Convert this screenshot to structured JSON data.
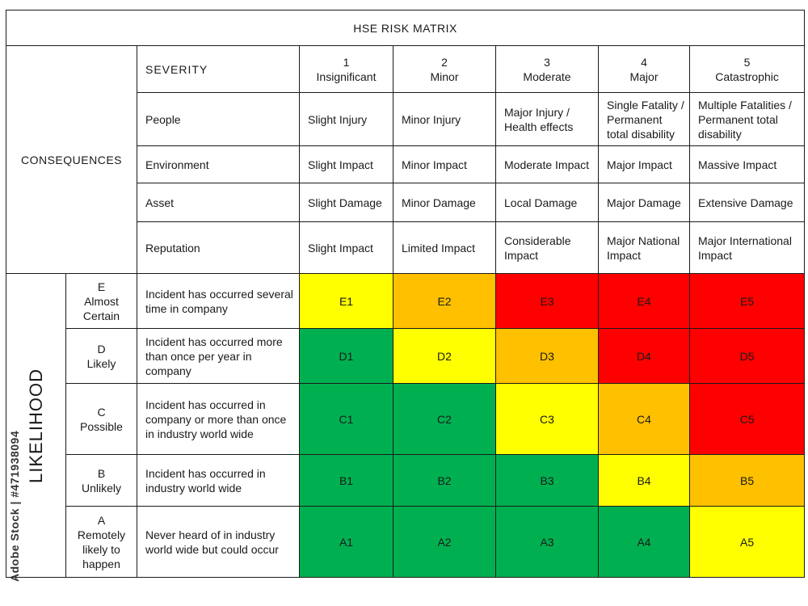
{
  "title": "HSE RISK MATRIX",
  "severity": {
    "heading": "SEVERITY",
    "levels": [
      {
        "num": "1",
        "name": "Insignificant"
      },
      {
        "num": "2",
        "name": "Minor"
      },
      {
        "num": "3",
        "name": "Moderate"
      },
      {
        "num": "4",
        "name": "Major"
      },
      {
        "num": "5",
        "name": "Catastrophic"
      }
    ]
  },
  "consequences": {
    "label": "CONSEQUENCES",
    "rows": [
      {
        "category": "People",
        "values": [
          "Slight Injury",
          "Minor Injury",
          "Major Injury / Health effects",
          "Single Fatality / Permanent total disability",
          "Multiple Fatalities / Permanent total disability"
        ]
      },
      {
        "category": "Environment",
        "values": [
          "Slight Impact",
          "Minor Impact",
          "Moderate Impact",
          "Major Impact",
          "Massive Impact"
        ]
      },
      {
        "category": "Asset",
        "values": [
          "Slight Damage",
          "Minor Damage",
          "Local Damage",
          "Major Damage",
          "Extensive Damage"
        ]
      },
      {
        "category": "Reputation",
        "values": [
          "Slight Impact",
          "Limited Impact",
          "Considerable Impact",
          "Major National Impact",
          "Major International Impact"
        ]
      }
    ]
  },
  "likelihood": {
    "label": "LIKELIHOOD",
    "rows": [
      {
        "letter": "E",
        "name": "Almost Certain",
        "description": "Incident has occurred several time in company",
        "cells": [
          "E1",
          "E2",
          "E3",
          "E4",
          "E5"
        ],
        "colors": [
          "#ffff00",
          "#ffc000",
          "#ff0000",
          "#ff0000",
          "#ff0000"
        ]
      },
      {
        "letter": "D",
        "name": "Likely",
        "description": "Incident has occurred more than once per year in company",
        "cells": [
          "D1",
          "D2",
          "D3",
          "D4",
          "D5"
        ],
        "colors": [
          "#00b050",
          "#ffff00",
          "#ffc000",
          "#ff0000",
          "#ff0000"
        ]
      },
      {
        "letter": "C",
        "name": "Possible",
        "description": "Incident has occurred in company or more than once in industry world wide",
        "cells": [
          "C1",
          "C2",
          "C3",
          "C4",
          "C5"
        ],
        "colors": [
          "#00b050",
          "#00b050",
          "#ffff00",
          "#ffc000",
          "#ff0000"
        ]
      },
      {
        "letter": "B",
        "name": "Unlikely",
        "description": "Incident has occurred in industry world wide",
        "cells": [
          "B1",
          "B2",
          "B3",
          "B4",
          "B5"
        ],
        "colors": [
          "#00b050",
          "#00b050",
          "#00b050",
          "#ffff00",
          "#ffc000"
        ]
      },
      {
        "letter": "A",
        "name": "Remotely likely to happen",
        "description": "Never heard of in industry world wide but could occur",
        "cells": [
          "A1",
          "A2",
          "A3",
          "A4",
          "A5"
        ],
        "colors": [
          "#00b050",
          "#00b050",
          "#00b050",
          "#00b050",
          "#ffff00"
        ]
      }
    ]
  },
  "watermark": {
    "stock_id": "Adobe Stock | #471938094"
  }
}
